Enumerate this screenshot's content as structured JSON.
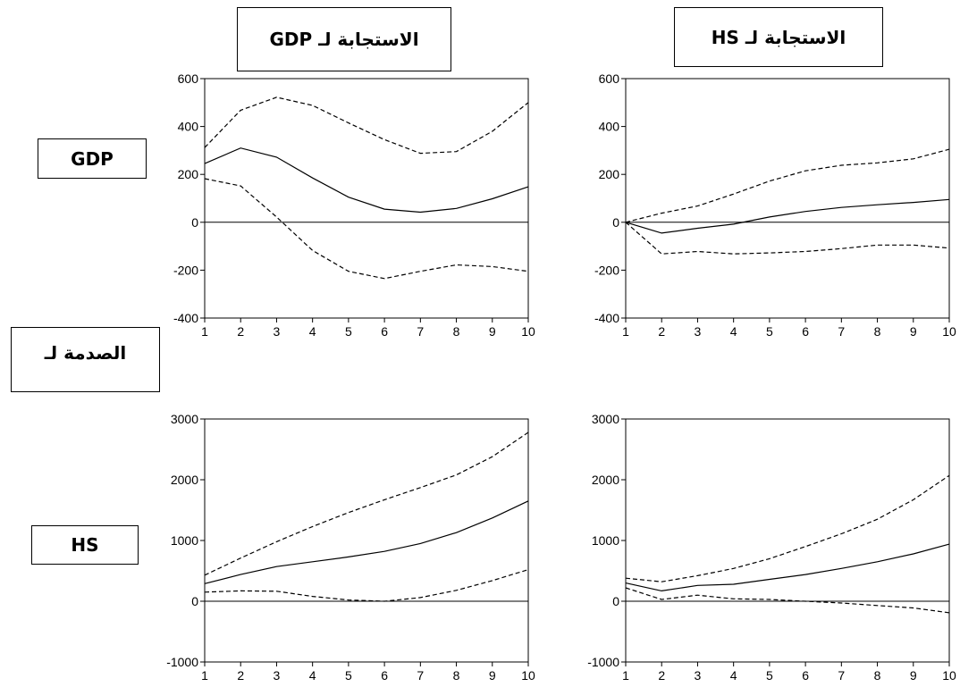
{
  "headers": {
    "col_left": "الاستجابة لـ GDP",
    "col_right": "الاستجابة لـ HS",
    "shock": "الصدمة لـ",
    "row_top": "GDP",
    "row_bottom": "HS"
  },
  "chart_data": [
    {
      "type": "line",
      "x": [
        1,
        2,
        3,
        4,
        5,
        6,
        7,
        8,
        9,
        10
      ],
      "ylim": [
        -400,
        600
      ],
      "yticks": [
        -400,
        -200,
        0,
        200,
        400,
        600
      ],
      "series": [
        {
          "role": "response",
          "style": "solid",
          "values": [
            245,
            310,
            272,
            185,
            105,
            55,
            42,
            58,
            98,
            148
          ]
        },
        {
          "role": "upper",
          "style": "dashed",
          "values": [
            312,
            468,
            522,
            488,
            415,
            345,
            288,
            295,
            380,
            500
          ]
        },
        {
          "role": "lower",
          "style": "dashed",
          "values": [
            182,
            152,
            22,
            -118,
            -205,
            -235,
            -205,
            -178,
            -185,
            -205
          ]
        }
      ]
    },
    {
      "type": "line",
      "x": [
        1,
        2,
        3,
        4,
        5,
        6,
        7,
        8,
        9,
        10
      ],
      "ylim": [
        -400,
        600
      ],
      "yticks": [
        -400,
        -200,
        0,
        200,
        400,
        600
      ],
      "series": [
        {
          "role": "response",
          "style": "solid",
          "values": [
            0,
            -45,
            -25,
            -8,
            22,
            45,
            62,
            73,
            83,
            95
          ]
        },
        {
          "role": "upper",
          "style": "dashed",
          "values": [
            0,
            38,
            68,
            118,
            172,
            215,
            238,
            248,
            265,
            305
          ]
        },
        {
          "role": "lower",
          "style": "dashed",
          "values": [
            0,
            -132,
            -122,
            -132,
            -128,
            -122,
            -110,
            -95,
            -95,
            -108
          ]
        }
      ]
    },
    {
      "type": "line",
      "x": [
        1,
        2,
        3,
        4,
        5,
        6,
        7,
        8,
        9,
        10
      ],
      "ylim": [
        -1000,
        3000
      ],
      "yticks": [
        -1000,
        0,
        1000,
        2000,
        3000
      ],
      "series": [
        {
          "role": "response",
          "style": "solid",
          "values": [
            290,
            440,
            570,
            650,
            730,
            820,
            950,
            1130,
            1370,
            1650
          ]
        },
        {
          "role": "upper",
          "style": "dashed",
          "values": [
            430,
            710,
            980,
            1230,
            1460,
            1670,
            1870,
            2080,
            2380,
            2780
          ]
        },
        {
          "role": "lower",
          "style": "dashed",
          "values": [
            150,
            170,
            165,
            80,
            20,
            0,
            60,
            180,
            340,
            520
          ]
        }
      ]
    },
    {
      "type": "line",
      "x": [
        1,
        2,
        3,
        4,
        5,
        6,
        7,
        8,
        9,
        10
      ],
      "ylim": [
        -1000,
        3000
      ],
      "yticks": [
        -1000,
        0,
        1000,
        2000,
        3000
      ],
      "series": [
        {
          "role": "response",
          "style": "solid",
          "values": [
            300,
            170,
            260,
            280,
            360,
            440,
            540,
            650,
            780,
            940
          ]
        },
        {
          "role": "upper",
          "style": "dashed",
          "values": [
            380,
            320,
            420,
            540,
            700,
            900,
            1110,
            1350,
            1670,
            2070
          ]
        },
        {
          "role": "lower",
          "style": "dashed",
          "values": [
            220,
            30,
            100,
            40,
            30,
            0,
            -30,
            -70,
            -110,
            -190
          ]
        }
      ]
    }
  ]
}
